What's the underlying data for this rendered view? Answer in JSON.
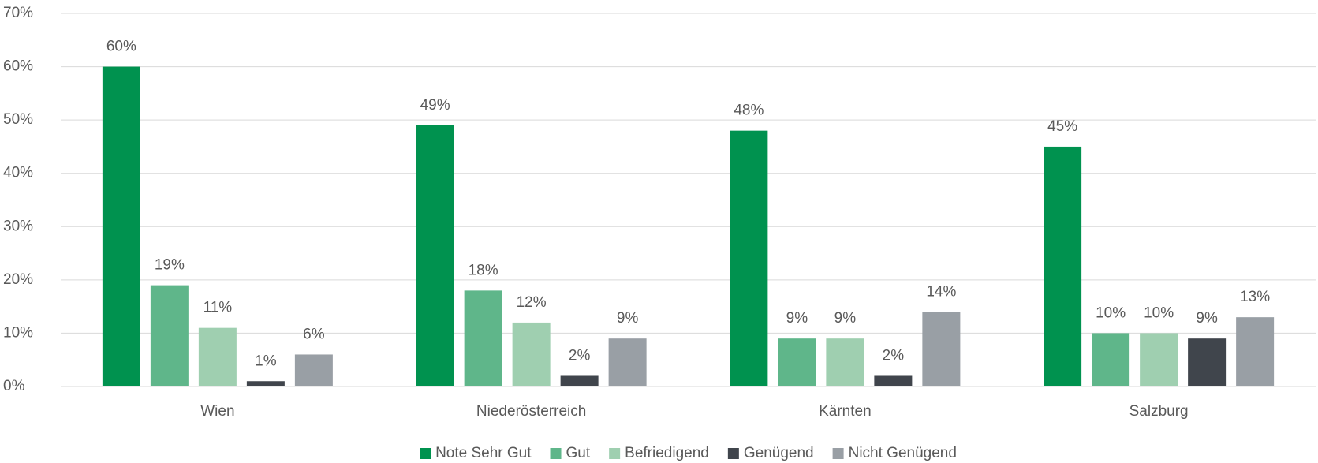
{
  "chart_data": {
    "type": "bar",
    "categories": [
      "Wien",
      "Niederösterreich",
      "Kärnten",
      "Salzburg"
    ],
    "series": [
      {
        "name": "Note Sehr Gut",
        "color": "#00924f",
        "values": [
          60,
          49,
          48,
          45
        ],
        "value_labels": [
          "60%",
          "49%",
          "48%",
          "45%"
        ]
      },
      {
        "name": "Gut",
        "color": "#5fb68a",
        "values": [
          19,
          18,
          9,
          10
        ],
        "value_labels": [
          "19%",
          "18%",
          "9%",
          "10%"
        ]
      },
      {
        "name": "Befriedigend",
        "color": "#9fcfb0",
        "values": [
          11,
          12,
          9,
          10
        ],
        "value_labels": [
          "11%",
          "12%",
          "9%",
          "10%"
        ]
      },
      {
        "name": "Genügend",
        "color": "#40454c",
        "values": [
          1,
          2,
          2,
          9
        ],
        "value_labels": [
          "1%",
          "2%",
          "2%",
          "9%"
        ]
      },
      {
        "name": "Nicht Genügend",
        "color": "#999fa5",
        "values": [
          6,
          9,
          14,
          13
        ],
        "value_labels": [
          "6%",
          "9%",
          "14%",
          "13%"
        ]
      }
    ],
    "ylim": [
      0,
      70
    ],
    "yticks": [
      {
        "value": 0,
        "label": "0%"
      },
      {
        "value": 10,
        "label": "10%"
      },
      {
        "value": 20,
        "label": "20%"
      },
      {
        "value": 30,
        "label": "30%"
      },
      {
        "value": 40,
        "label": "40%"
      },
      {
        "value": 50,
        "label": "50%"
      },
      {
        "value": 60,
        "label": "60%"
      },
      {
        "value": 70,
        "label": "70%"
      }
    ],
    "grid": true,
    "legend": "bottom"
  }
}
